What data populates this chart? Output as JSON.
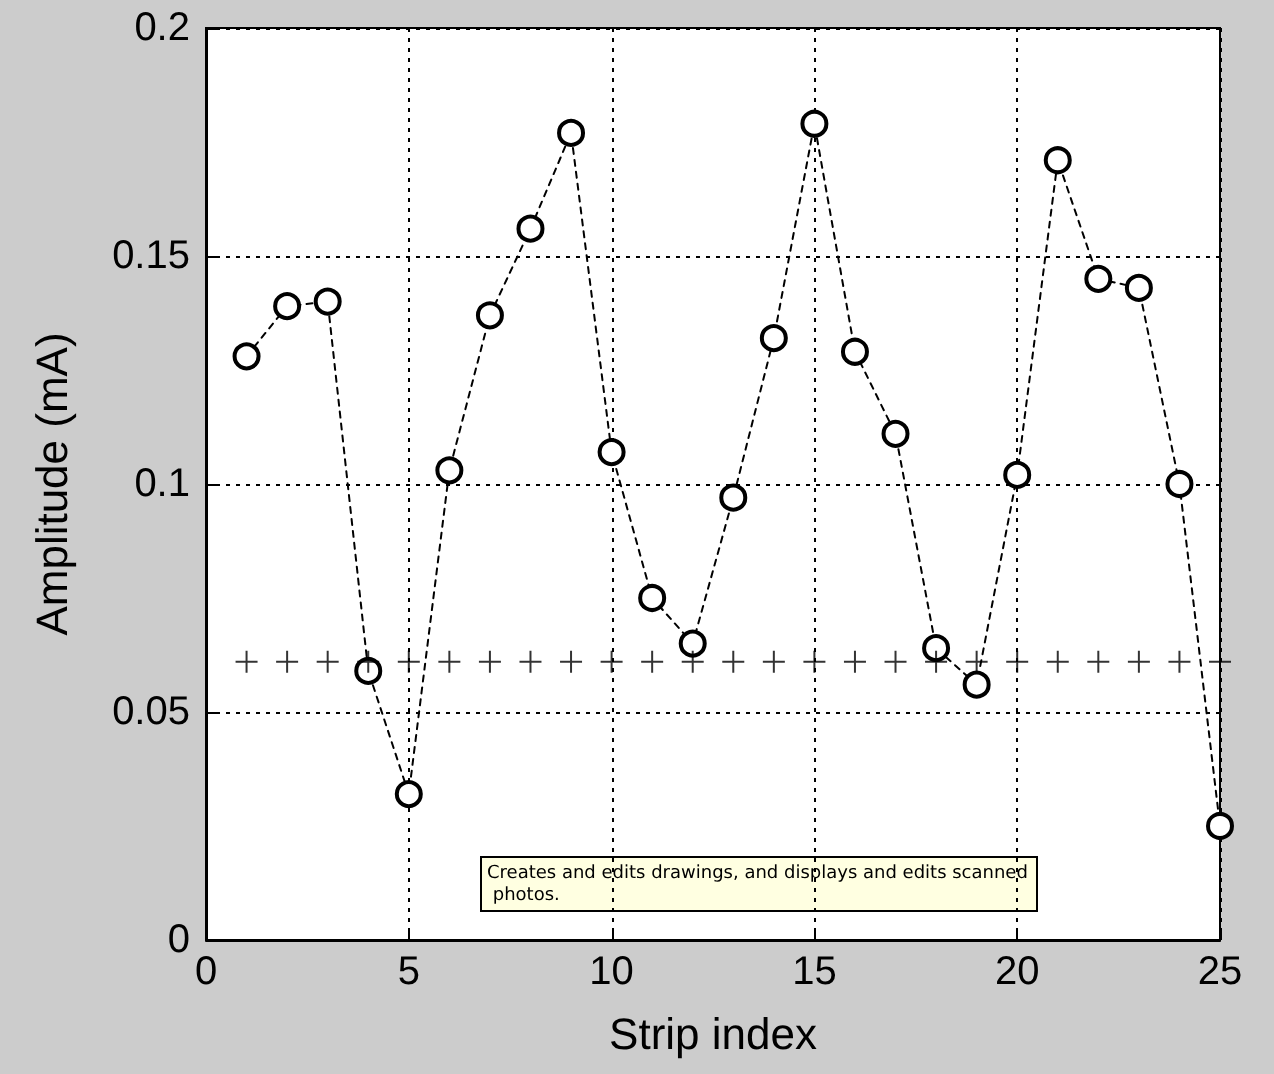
{
  "chart_data": {
    "type": "line",
    "xlabel": "Strip index",
    "ylabel": "Amplitude (mA)",
    "x": [
      1,
      2,
      3,
      4,
      5,
      6,
      7,
      8,
      9,
      10,
      11,
      12,
      13,
      14,
      15,
      16,
      17,
      18,
      19,
      20,
      21,
      22,
      23,
      24,
      25
    ],
    "series": [
      {
        "color": "#000000",
        "marker": "circle",
        "line_style": "dashed",
        "values": [
          0.128,
          0.139,
          0.14,
          0.059,
          0.032,
          0.103,
          0.137,
          0.156,
          0.177,
          0.107,
          0.075,
          0.065,
          0.097,
          0.132,
          0.179,
          0.129,
          0.111,
          0.064,
          0.056,
          0.102,
          0.171,
          0.145,
          0.143,
          0.1,
          0.025
        ]
      },
      {
        "type": "scatter",
        "color": "#000000",
        "marker": "cross",
        "values": [
          0.061,
          0.061,
          0.061,
          0.061,
          0.061,
          0.061,
          0.061,
          0.061,
          0.061,
          0.061,
          0.061,
          0.061,
          0.061,
          0.061,
          0.061,
          0.061,
          0.061,
          0.061,
          0.061,
          0.061,
          0.061,
          0.061,
          0.061,
          0.061,
          0.061
        ]
      }
    ],
    "xlim": [
      0,
      25
    ],
    "xticks": [
      0,
      5,
      10,
      15,
      20,
      25
    ],
    "ylim": [
      0,
      0.2
    ],
    "yticks": [
      0,
      0.05,
      0.1,
      0.15,
      0.2
    ],
    "grid": true,
    "annotations": [
      "Creates and edits drawings, and displays and edits scanned photos."
    ]
  }
}
